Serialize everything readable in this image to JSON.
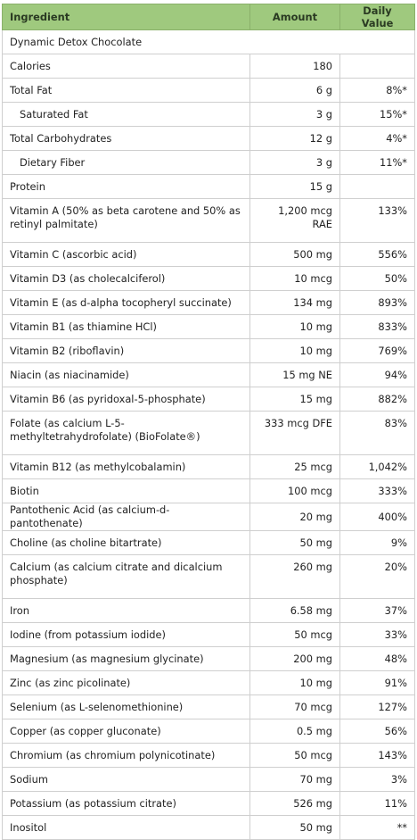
{
  "headers": {
    "ingredient": "Ingredient",
    "amount": "Amount",
    "daily_value": "Daily Value"
  },
  "product": "Dynamic Detox Chocolate",
  "rows": [
    {
      "ingredient": "Calories",
      "amount": "180",
      "dv": ""
    },
    {
      "ingredient": "Total Fat",
      "amount": "6 g",
      "dv": "8%*"
    },
    {
      "ingredient": "Saturated Fat",
      "amount": "3 g",
      "dv": "15%*"
    },
    {
      "ingredient": "Total Carbohydrates",
      "amount": "12 g",
      "dv": "4%*"
    },
    {
      "ingredient": "Dietary Fiber",
      "amount": "3 g",
      "dv": "11%*"
    },
    {
      "ingredient": "Protein",
      "amount": "15 g",
      "dv": ""
    },
    {
      "ingredient": "Vitamin A (50% as beta carotene and 50% as retinyl palmitate)",
      "amount": "1,200 mcg RAE",
      "dv": "133%"
    },
    {
      "ingredient": "Vitamin C (ascorbic acid)",
      "amount": "500 mg",
      "dv": "556%"
    },
    {
      "ingredient": "Vitamin D3 (as cholecalciferol)",
      "amount": "10 mcg",
      "dv": "50%"
    },
    {
      "ingredient": "Vitamin E (as d-alpha tocopheryl succinate)",
      "amount": "134 mg",
      "dv": "893%"
    },
    {
      "ingredient": "Vitamin B1 (as thiamine HCl)",
      "amount": "10 mg",
      "dv": "833%"
    },
    {
      "ingredient": "Vitamin B2 (riboflavin)",
      "amount": "10 mg",
      "dv": "769%"
    },
    {
      "ingredient": "Niacin (as niacinamide)",
      "amount": "15 mg NE",
      "dv": "94%"
    },
    {
      "ingredient": "Vitamin B6 (as pyridoxal-5-phosphate)",
      "amount": "15 mg",
      "dv": "882%"
    },
    {
      "ingredient": "Folate (as calcium L-5-methyltetrahydrofolate) (BioFolate®)",
      "amount": "333 mcg DFE",
      "dv": "83%"
    },
    {
      "ingredient": "Vitamin B12 (as methylcobalamin)",
      "amount": "25 mcg",
      "dv": "1,042%"
    },
    {
      "ingredient": "Biotin",
      "amount": "100 mcg",
      "dv": "333%"
    },
    {
      "ingredient": "Pantothenic Acid (as calcium-d-pantothenate)",
      "amount": "20 mg",
      "dv": "400%"
    },
    {
      "ingredient": "Choline (as choline bitartrate)",
      "amount": "50 mg",
      "dv": "9%"
    },
    {
      "ingredient": "Calcium (as calcium citrate and dicalcium phosphate)",
      "amount": "260 mg",
      "dv": "20%"
    },
    {
      "ingredient": "Iron",
      "amount": "6.58 mg",
      "dv": "37%"
    },
    {
      "ingredient": "Iodine (from potassium iodide)",
      "amount": "50 mcg",
      "dv": "33%"
    },
    {
      "ingredient": "Magnesium (as magnesium glycinate)",
      "amount": "200 mg",
      "dv": "48%"
    },
    {
      "ingredient": "Zinc (as zinc picolinate)",
      "amount": "10 mg",
      "dv": "91%"
    },
    {
      "ingredient": "Selenium (as L-selenomethionine)",
      "amount": "70 mcg",
      "dv": "127%"
    },
    {
      "ingredient": "Copper (as copper gluconate)",
      "amount": "0.5 mg",
      "dv": "56%"
    },
    {
      "ingredient": "Chromium (as chromium polynicotinate)",
      "amount": "50 mcg",
      "dv": "143%"
    },
    {
      "ingredient": "Sodium",
      "amount": "70 mg",
      "dv": "3%"
    },
    {
      "ingredient": "Potassium (as potassium citrate)",
      "amount": "526 mg",
      "dv": "11%"
    },
    {
      "ingredient": "Inositol",
      "amount": "50 mg",
      "dv": "**"
    }
  ],
  "colors": {
    "header_bg": "#9fc97e",
    "header_text": "#2a3a22",
    "border": "#cfcfcf"
  }
}
